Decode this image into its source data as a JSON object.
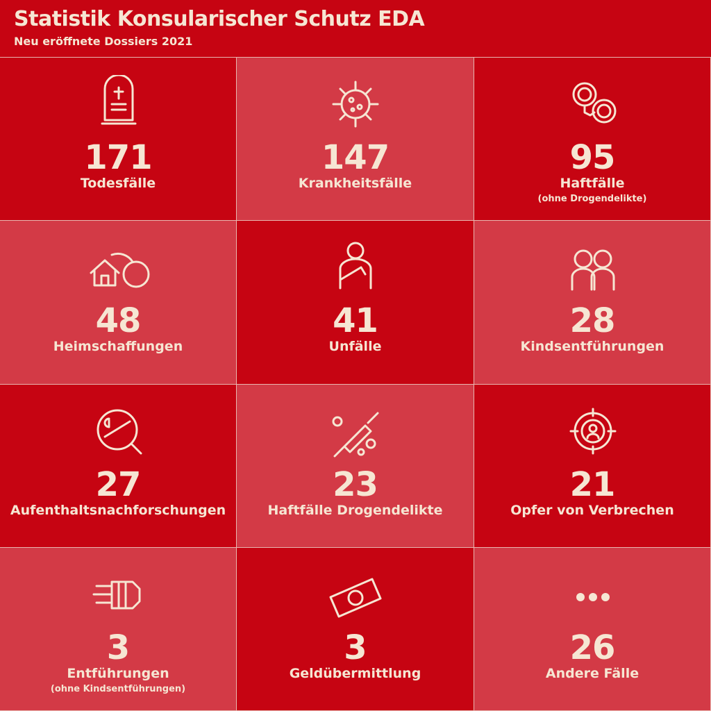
{
  "header": {
    "title": "Statistik Konsularischer Schutz EDA",
    "subtitle": "Neu eröffnete Dossiers 2021"
  },
  "tiles": [
    {
      "value": 171,
      "label": "Todesfälle"
    },
    {
      "value": 147,
      "label": "Krankheitsfälle"
    },
    {
      "value": 95,
      "label": "Haftfälle",
      "note": "(ohne Drogendelikte)"
    },
    {
      "value": 48,
      "label": "Heimschaffungen"
    },
    {
      "value": 41,
      "label": "Unfälle"
    },
    {
      "value": 28,
      "label": "Kindsentführungen"
    },
    {
      "value": 27,
      "label": "Aufenthaltsnachforschungen"
    },
    {
      "value": 23,
      "label": "Haftfälle Drogendelikte"
    },
    {
      "value": 21,
      "label": "Opfer von Verbrechen"
    },
    {
      "value": 3,
      "label": "Entführungen",
      "note": "(ohne Kindsentführungen)"
    },
    {
      "value": 3,
      "label": "Geldübermittlung"
    },
    {
      "value": 26,
      "label": "Andere Fälle"
    }
  ]
}
